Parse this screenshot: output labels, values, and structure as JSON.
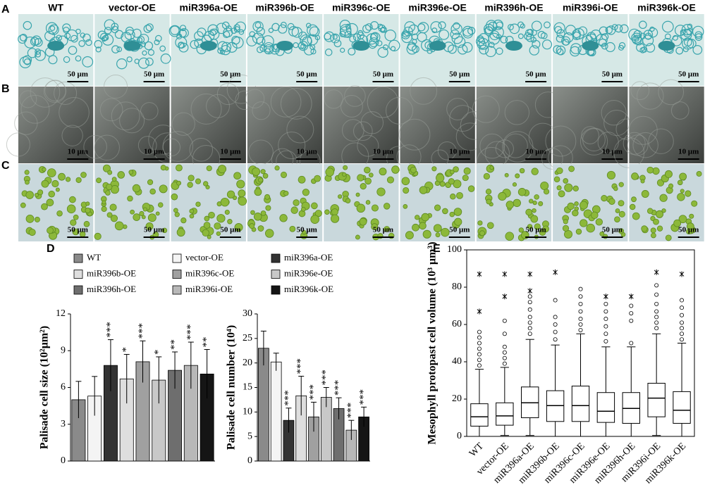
{
  "images": {
    "columns": [
      "WT",
      "vector-OE",
      "miR396a-OE",
      "miR396b-OE",
      "miR396c-OE",
      "miR396e-OE",
      "miR396h-OE",
      "miR396i-OE",
      "miR396k-OE"
    ],
    "rows": [
      {
        "label": "A",
        "scale": "50 μm"
      },
      {
        "label": "B",
        "scale": "10 μm"
      },
      {
        "label": "C",
        "scale": "50 μm"
      }
    ]
  },
  "chart_data": [
    {
      "type": "bar",
      "panel": "D",
      "ylabel": "Palisade cell size (10²μm²)",
      "ylim": [
        0,
        12
      ],
      "yticks": [
        0,
        3,
        6,
        9,
        12
      ],
      "series": [
        {
          "name": "WT",
          "color": "#8a8a8a",
          "values": [
            5.0
          ],
          "errors": [
            1.5
          ]
        },
        {
          "name": "vector-OE",
          "color": "#f4f4f4",
          "values": [
            5.3
          ],
          "errors": [
            1.6
          ]
        },
        {
          "name": "miR396a-OE",
          "color": "#333333",
          "values": [
            7.8
          ],
          "errors": [
            2.1
          ],
          "annotation": "***"
        },
        {
          "name": "miR396b-OE",
          "color": "#dedede",
          "values": [
            6.7
          ],
          "errors": [
            2.0
          ],
          "annotation": "*"
        },
        {
          "name": "miR396c-OE",
          "color": "#a0a0a0",
          "values": [
            8.1
          ],
          "errors": [
            1.7
          ],
          "annotation": "***"
        },
        {
          "name": "miR396e-OE",
          "color": "#c8c8c8",
          "values": [
            6.6
          ],
          "errors": [
            1.9
          ],
          "annotation": "*"
        },
        {
          "name": "miR396h-OE",
          "color": "#6e6e6e",
          "values": [
            7.4
          ],
          "errors": [
            1.5
          ],
          "annotation": "**"
        },
        {
          "name": "miR396i-OE",
          "color": "#b8b8b8",
          "values": [
            7.8
          ],
          "errors": [
            1.9
          ],
          "annotation": "***"
        },
        {
          "name": "miR396k-OE",
          "color": "#151515",
          "values": [
            7.1
          ],
          "errors": [
            2.0
          ],
          "annotation": "**"
        }
      ]
    },
    {
      "type": "bar",
      "ylabel": "Palisade cell number (10⁴)",
      "ylim": [
        0,
        30
      ],
      "yticks": [
        0,
        5,
        10,
        15,
        20,
        25,
        30
      ],
      "series": [
        {
          "color": "#8a8a8a",
          "values": [
            23.0
          ],
          "errors": [
            3.5
          ]
        },
        {
          "color": "#f4f4f4",
          "values": [
            20.2
          ],
          "errors": [
            1.8
          ]
        },
        {
          "color": "#333333",
          "values": [
            8.3
          ],
          "errors": [
            2.5
          ],
          "annotation": "***"
        },
        {
          "color": "#dedede",
          "values": [
            13.3
          ],
          "errors": [
            4.0
          ],
          "annotation": "***"
        },
        {
          "color": "#a0a0a0",
          "values": [
            9.0
          ],
          "errors": [
            3.0
          ],
          "annotation": "***"
        },
        {
          "color": "#c8c8c8",
          "values": [
            13.0
          ],
          "errors": [
            2.0
          ],
          "annotation": "***"
        },
        {
          "color": "#6e6e6e",
          "values": [
            10.7
          ],
          "errors": [
            2.2
          ],
          "annotation": "***"
        },
        {
          "color": "#b8b8b8",
          "values": [
            6.3
          ],
          "errors": [
            2.0
          ],
          "annotation": "***"
        },
        {
          "color": "#151515",
          "values": [
            9.0
          ],
          "errors": [
            2.0
          ],
          "annotation": "***"
        }
      ]
    },
    {
      "type": "box",
      "panel": "E",
      "ylabel": "Mesophyll protopast cell volume (10³ μm³)",
      "ylim": [
        0,
        100
      ],
      "yticks": [
        0,
        20,
        40,
        60,
        80,
        100
      ],
      "categories": [
        "WT",
        "vector-OE",
        "miR396a-OE",
        "miR396b-OE",
        "miR396c-OE",
        "miR396e-OE",
        "miR396h-OE",
        "miR396i-OE",
        "miR396k-OE"
      ],
      "boxes": [
        {
          "min": 0,
          "q1": 5.5,
          "median": 10.5,
          "q3": 17.5,
          "max": 36,
          "outliers": [
            38,
            41,
            44,
            47,
            50,
            53,
            56
          ],
          "extremes": [
            67,
            87
          ]
        },
        {
          "min": 0.5,
          "q1": 6,
          "median": 11,
          "q3": 18,
          "max": 37,
          "outliers": [
            39,
            42,
            45,
            48,
            55,
            62
          ],
          "extremes": [
            75,
            87
          ]
        },
        {
          "min": 0.5,
          "q1": 10,
          "median": 18,
          "q3": 26.5,
          "max": 52,
          "outliers": [
            55,
            58,
            61,
            64,
            68,
            72,
            75
          ],
          "extremes": [
            78,
            87
          ]
        },
        {
          "min": 0,
          "q1": 8,
          "median": 16.5,
          "q3": 24.5,
          "max": 49,
          "outliers": [
            52,
            56,
            60,
            64,
            73
          ],
          "extremes": [
            88
          ]
        },
        {
          "min": 0,
          "q1": 8,
          "median": 16.5,
          "q3": 27,
          "max": 55,
          "outliers": [
            57,
            60,
            63,
            67,
            71,
            75,
            79
          ]
        },
        {
          "min": 0,
          "q1": 7.5,
          "median": 13.5,
          "q3": 23.5,
          "max": 48,
          "outliers": [
            51,
            55,
            59,
            63,
            67,
            71
          ],
          "extremes": [
            75
          ]
        },
        {
          "min": 0,
          "q1": 7,
          "median": 15,
          "q3": 23.5,
          "max": 48,
          "outliers": [
            50,
            62,
            66,
            70
          ],
          "extremes": [
            75
          ]
        },
        {
          "min": 0.5,
          "q1": 10.5,
          "median": 20.5,
          "q3": 28.5,
          "max": 55,
          "outliers": [
            58,
            61,
            64,
            67,
            71,
            76,
            81
          ],
          "extremes": [
            88
          ]
        },
        {
          "min": 0,
          "q1": 7,
          "median": 14,
          "q3": 24,
          "max": 50,
          "outliers": [
            52,
            55,
            58,
            61,
            65,
            69,
            73
          ],
          "extremes": [
            87
          ]
        }
      ]
    }
  ]
}
